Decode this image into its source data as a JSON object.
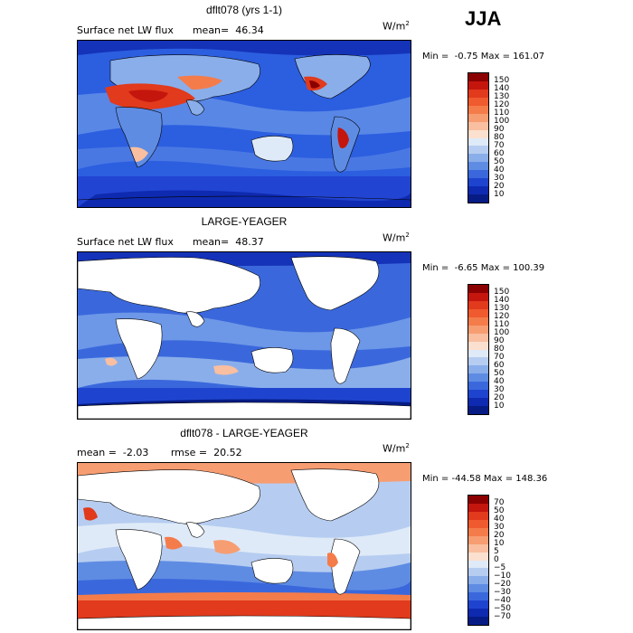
{
  "season": "JJA",
  "panels": [
    {
      "title": "dflt078 (yrs 1-1)",
      "left_text": "Surface net LW flux      mean=  46.34",
      "units": "W/m",
      "units_exp": "2",
      "minmax": "Min =  -0.75 Max = 161.07",
      "colorbar": {
        "labels": [
          "150",
          "140",
          "130",
          "120",
          "110",
          "100",
          "90",
          "80",
          "70",
          "60",
          "50",
          "40",
          "30",
          "20",
          "10"
        ],
        "colors": [
          "#8b0000",
          "#c4160d",
          "#e13a1c",
          "#ef5a2e",
          "#f47c4a",
          "#f79d72",
          "#f9bfa0",
          "#fbe0cf",
          "#dfeaf8",
          "#b6cdf1",
          "#8aaeea",
          "#5f8ce3",
          "#3a68dc",
          "#1e44cf",
          "#0e2ab0",
          "#061c84"
        ]
      }
    },
    {
      "title": "LARGE-YEAGER",
      "left_text": "Surface net LW flux      mean=  48.37",
      "units": "W/m",
      "units_exp": "2",
      "minmax": "Min =  -6.65 Max = 100.39",
      "colorbar": {
        "labels": [
          "150",
          "140",
          "130",
          "120",
          "110",
          "100",
          "90",
          "80",
          "70",
          "60",
          "50",
          "40",
          "30",
          "20",
          "10"
        ],
        "colors": [
          "#8b0000",
          "#c4160d",
          "#e13a1c",
          "#ef5a2e",
          "#f47c4a",
          "#f79d72",
          "#f9bfa0",
          "#fbe0cf",
          "#dfeaf8",
          "#b6cdf1",
          "#8aaeea",
          "#5f8ce3",
          "#3a68dc",
          "#1e44cf",
          "#0e2ab0",
          "#061c84"
        ]
      }
    },
    {
      "title": "dflt078 - LARGE-YEAGER",
      "left_text": "mean =  -2.03       rmse =  20.52",
      "units": "W/m",
      "units_exp": "2",
      "minmax": "Min = -44.58 Max = 148.36",
      "colorbar": {
        "labels": [
          "70",
          "50",
          "40",
          "30",
          "20",
          "10",
          "5",
          "0",
          "−5",
          "−10",
          "−20",
          "−30",
          "−40",
          "−50",
          "−70"
        ],
        "colors": [
          "#8b0000",
          "#c4160d",
          "#e13a1c",
          "#ef5a2e",
          "#f47c4a",
          "#f79d72",
          "#f9bfa0",
          "#fbe0cf",
          "#dfeaf8",
          "#b6cdf1",
          "#8aaeea",
          "#5f8ce3",
          "#3a68dc",
          "#1e44cf",
          "#0e2ab0",
          "#061c84"
        ]
      }
    }
  ]
}
